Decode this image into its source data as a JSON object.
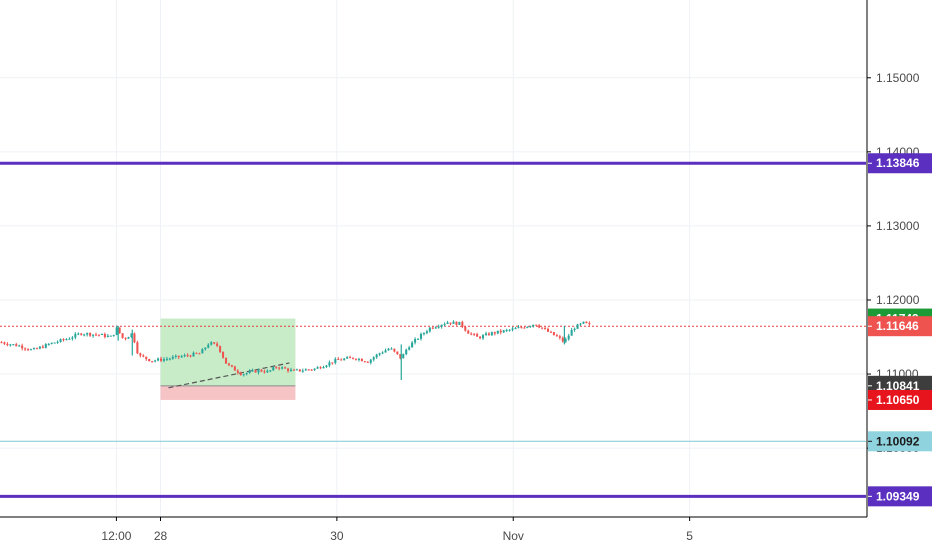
{
  "chart_data": {
    "type": "candlestick",
    "title": "",
    "xlabel": "",
    "ylabel": "",
    "ylim": [
      1.0907,
      1.1605
    ],
    "grid": true,
    "y_ticks": [
      "1.15000",
      "1.14000",
      "1.13000",
      "1.12000",
      "1.11000",
      "1.10000"
    ],
    "y_tick_values": [
      1.15,
      1.14,
      1.13,
      1.12,
      1.11,
      1.1
    ],
    "x_ticks": [
      {
        "label": "12:00",
        "day": 27.5
      },
      {
        "label": "28",
        "day": 28
      },
      {
        "label": "30",
        "day": 30
      },
      {
        "label": "Nov",
        "day": 32
      },
      {
        "label": "5",
        "day": 34
      }
    ],
    "xlim_days": [
      26.18,
      36.0
    ],
    "horizontal_lines": [
      {
        "price": 1.13846,
        "label": "1.13846",
        "color": "#5b2fbf",
        "style": "solid-thick"
      },
      {
        "price": 1.09349,
        "label": "1.09349",
        "color": "#5b2fbf",
        "style": "solid-thick"
      },
      {
        "price": 1.10092,
        "label": "1.10092",
        "color": "#7fc8d6",
        "style": "solid-thin"
      },
      {
        "price": 1.11646,
        "label": "",
        "color": "#e04040",
        "style": "dotted"
      }
    ],
    "price_labels": [
      {
        "price": 1.11749,
        "label": "1.11749",
        "bg": "#1b9a35",
        "color": "#ffffff"
      },
      {
        "price": 1.11646,
        "label": "1.11646",
        "bg": "#ef5350",
        "color": "#ffffff"
      },
      {
        "price": 1.10841,
        "label": "1.10841",
        "bg": "#3d3d3d",
        "color": "#ffffff"
      },
      {
        "price": 1.1065,
        "label": "1.10650",
        "bg": "#e8141d",
        "color": "#ffffff"
      },
      {
        "price": 1.10092,
        "label": "1.10092",
        "bg": "#8fd3df",
        "color": "#1a1a1a"
      },
      {
        "price": 1.13846,
        "label": "1.13846",
        "bg": "#5b2fbf",
        "color": "#ffffff"
      },
      {
        "price": 1.09349,
        "label": "1.09349",
        "bg": "#5b2fbf",
        "color": "#ffffff"
      }
    ],
    "position_tool": {
      "start_day": 28.0,
      "end_day": 29.53,
      "entry": 1.10841,
      "target": 1.11749,
      "stop": 1.1065,
      "profit_color": "#c8ebc8",
      "loss_color": "#f7c4c6"
    },
    "series": [
      {
        "name": "",
        "close_path": [
          [
            26.18,
            1.1143
          ],
          [
            26.4,
            1.1138
          ],
          [
            26.55,
            1.1132
          ],
          [
            26.75,
            1.1141
          ],
          [
            26.95,
            1.1148
          ],
          [
            27.1,
            1.1155
          ],
          [
            27.3,
            1.1153
          ],
          [
            27.45,
            1.115
          ],
          [
            27.5,
            1.1162
          ],
          [
            27.58,
            1.1147
          ],
          [
            27.68,
            1.1155
          ],
          [
            27.75,
            1.1125
          ],
          [
            27.9,
            1.1118
          ],
          [
            28.1,
            1.1121
          ],
          [
            28.3,
            1.1125
          ],
          [
            28.45,
            1.1128
          ],
          [
            28.55,
            1.1142
          ],
          [
            28.65,
            1.1138
          ],
          [
            28.75,
            1.1113
          ],
          [
            28.92,
            1.11
          ],
          [
            29.12,
            1.1105
          ],
          [
            29.22,
            1.1103
          ],
          [
            29.32,
            1.111
          ],
          [
            29.5,
            1.1104
          ],
          [
            29.75,
            1.1107
          ],
          [
            30.0,
            1.1119
          ],
          [
            30.2,
            1.1122
          ],
          [
            30.35,
            1.1117
          ],
          [
            30.48,
            1.1128
          ],
          [
            30.6,
            1.1135
          ],
          [
            30.73,
            1.1121
          ],
          [
            30.8,
            1.1136
          ],
          [
            30.95,
            1.1152
          ],
          [
            31.05,
            1.1162
          ],
          [
            31.25,
            1.117
          ],
          [
            31.4,
            1.1168
          ],
          [
            31.48,
            1.1157
          ],
          [
            31.6,
            1.1149
          ],
          [
            31.75,
            1.1155
          ],
          [
            31.9,
            1.1158
          ],
          [
            32.1,
            1.1163
          ],
          [
            32.25,
            1.1168
          ],
          [
            32.38,
            1.1158
          ],
          [
            32.5,
            1.115
          ],
          [
            32.58,
            1.1143
          ],
          [
            32.68,
            1.1162
          ],
          [
            32.8,
            1.1169
          ],
          [
            32.88,
            1.1165
          ]
        ]
      },
      {
        "name": "",
        "long_wicks": [
          {
            "day": 27.52,
            "high": 1.1165,
            "low": 1.1145
          },
          {
            "day": 27.68,
            "high": 1.116,
            "low": 1.1125
          },
          {
            "day": 30.73,
            "high": 1.114,
            "low": 1.1092
          },
          {
            "day": 32.58,
            "high": 1.1165,
            "low": 1.114
          }
        ]
      }
    ],
    "bull_color": "#26a69a",
    "bear_color": "#ef5350",
    "colors": {
      "grid": "#eef1f6",
      "axis_text": "#4a4a4a",
      "axis_border": "#000000"
    }
  }
}
